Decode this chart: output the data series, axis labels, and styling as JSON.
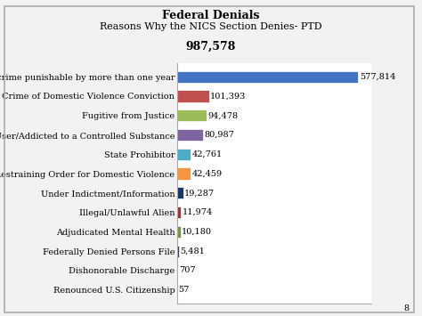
{
  "title_line1": "Federal Denials",
  "title_line2": "Reasons Why the NICS Section Denies- PTD",
  "total_label": "987,578",
  "categories": [
    "Convicted of a crime punishable by more than one year",
    "Misdemeanor Crime of Domestic Violence Conviction",
    "Fugitive from Justice",
    "Unlawful User/Addicted to a Controlled Substance",
    "State Prohibitor",
    "Protection/Restraining Order for Domestic Violence",
    "Under Indictment/Information",
    "Illegal/Unlawful Alien",
    "Adjudicated Mental Health",
    "Federally Denied Persons File",
    "Dishonorable Discharge",
    "Renounced U.S. Citizenship"
  ],
  "values": [
    577814,
    101393,
    94478,
    80987,
    42761,
    42459,
    19287,
    11974,
    10180,
    5481,
    707,
    57
  ],
  "value_labels": [
    "577,814",
    "101,393",
    "94,478",
    "80,987",
    "42,761",
    "42,459",
    "19,287",
    "11,974",
    "10,180",
    "5,481",
    "707",
    "57"
  ],
  "bar_colors": [
    "#4472C4",
    "#C0504D",
    "#9BBB59",
    "#8064A2",
    "#4BACC6",
    "#F79646",
    "#17375E",
    "#943634",
    "#76923C",
    "#403151",
    "#17375E",
    "#C0504D"
  ],
  "bg_color": "#F2F2F2",
  "plot_bg": "#FFFFFF",
  "border_color": "#AAAAAA",
  "title_fontsize": 9,
  "label_fontsize": 7,
  "value_fontsize": 7,
  "total_fontsize": 9,
  "xlim": [
    0,
    620000
  ]
}
